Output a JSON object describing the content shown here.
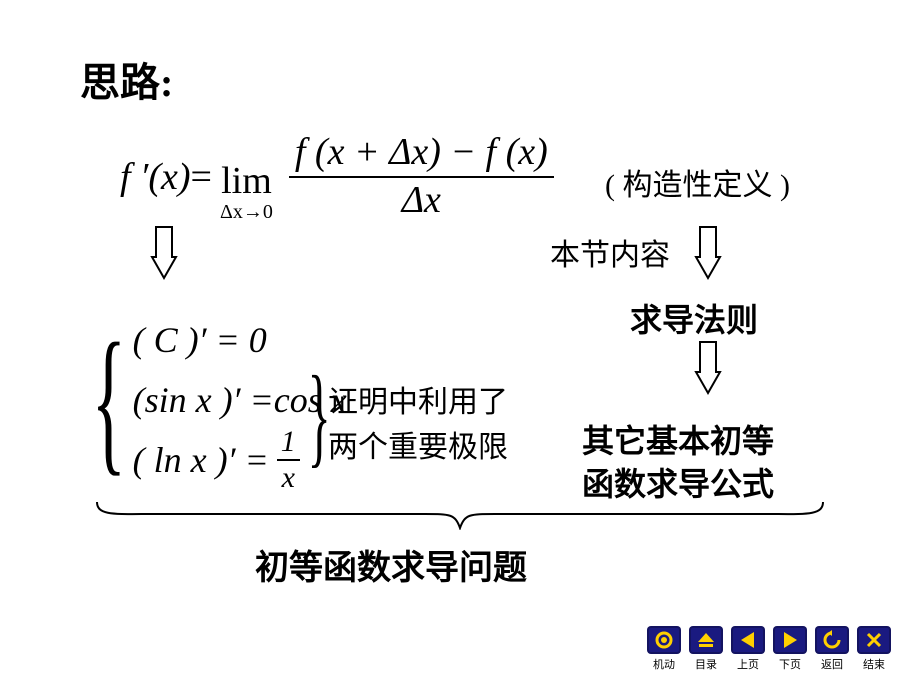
{
  "heading": "思路:",
  "formula": {
    "lhs": "f ′(x)",
    "eq": " = ",
    "lim_top": "lim",
    "lim_sub": "Δx→0",
    "frac_num": "f (x + Δx) − f (x)",
    "frac_den": "Δx"
  },
  "aside1": "( 构造性定义 )",
  "label_node": "本节内容",
  "rule_label": "求导法则",
  "system": {
    "row1": "( C )′ = 0",
    "row2_lhs": "(sin x )′ = ",
    "row2_rhs": "cos x",
    "row3_lhs": "( ln x )′ = ",
    "row3_frac_num": "1",
    "row3_frac_den": "x"
  },
  "note_line1": "证明中利用了",
  "note_line2": "两个重要极限",
  "conclusion_line1": "其它基本初等",
  "conclusion_line2": "函数求导公式",
  "bottom_label": "初等函数求导问题",
  "nav": {
    "items": [
      {
        "name": "machine-icon",
        "label": "机动",
        "bg": "#1a1a80",
        "fg": "#ffd000",
        "glyph": "circle"
      },
      {
        "name": "toc-icon",
        "label": "目录",
        "bg": "#1a1a80",
        "fg": "#ffd000",
        "glyph": "eject"
      },
      {
        "name": "prev-icon",
        "label": "上页",
        "bg": "#1a1a80",
        "fg": "#ffd000",
        "glyph": "left"
      },
      {
        "name": "next-icon",
        "label": "下页",
        "bg": "#1a1a80",
        "fg": "#ffd000",
        "glyph": "right"
      },
      {
        "name": "back-icon",
        "label": "返回",
        "bg": "#1a1a80",
        "fg": "#ffd000",
        "glyph": "reload"
      },
      {
        "name": "end-icon",
        "label": "结束",
        "bg": "#1a1a80",
        "fg": "#ffd000",
        "glyph": "cross"
      }
    ]
  },
  "colors": {
    "text": "#000000",
    "bg": "#ffffff"
  }
}
